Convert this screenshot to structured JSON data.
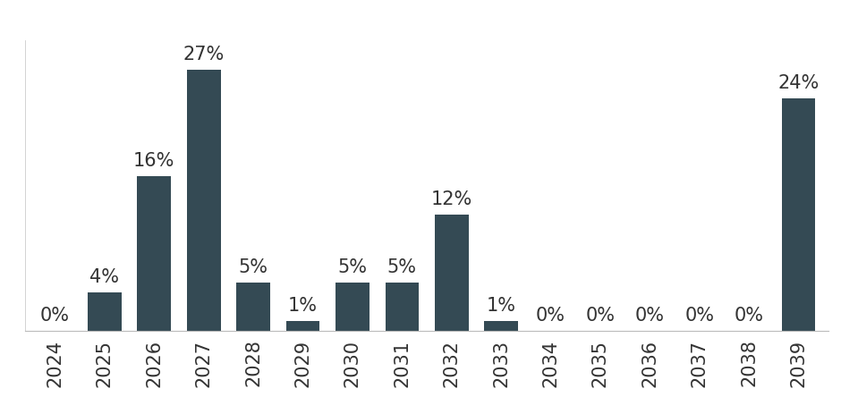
{
  "chart_data": {
    "type": "bar",
    "categories": [
      "2024",
      "2025",
      "2026",
      "2027",
      "2028",
      "2029",
      "2030",
      "2031",
      "2032",
      "2033",
      "2034",
      "2035",
      "2036",
      "2037",
      "2038",
      "2039"
    ],
    "values": [
      0,
      4,
      16,
      27,
      5,
      1,
      5,
      5,
      12,
      1,
      0,
      0,
      0,
      0,
      0,
      24
    ],
    "value_labels": [
      "0%",
      "4%",
      "16%",
      "27%",
      "5%",
      "1%",
      "5%",
      "5%",
      "12%",
      "1%",
      "0%",
      "0%",
      "0%",
      "0%",
      "0%",
      "24%"
    ],
    "color": "#344a54",
    "ylim": [
      0,
      30
    ],
    "data_labels": true,
    "tick_labels": "x",
    "grid": false
  }
}
